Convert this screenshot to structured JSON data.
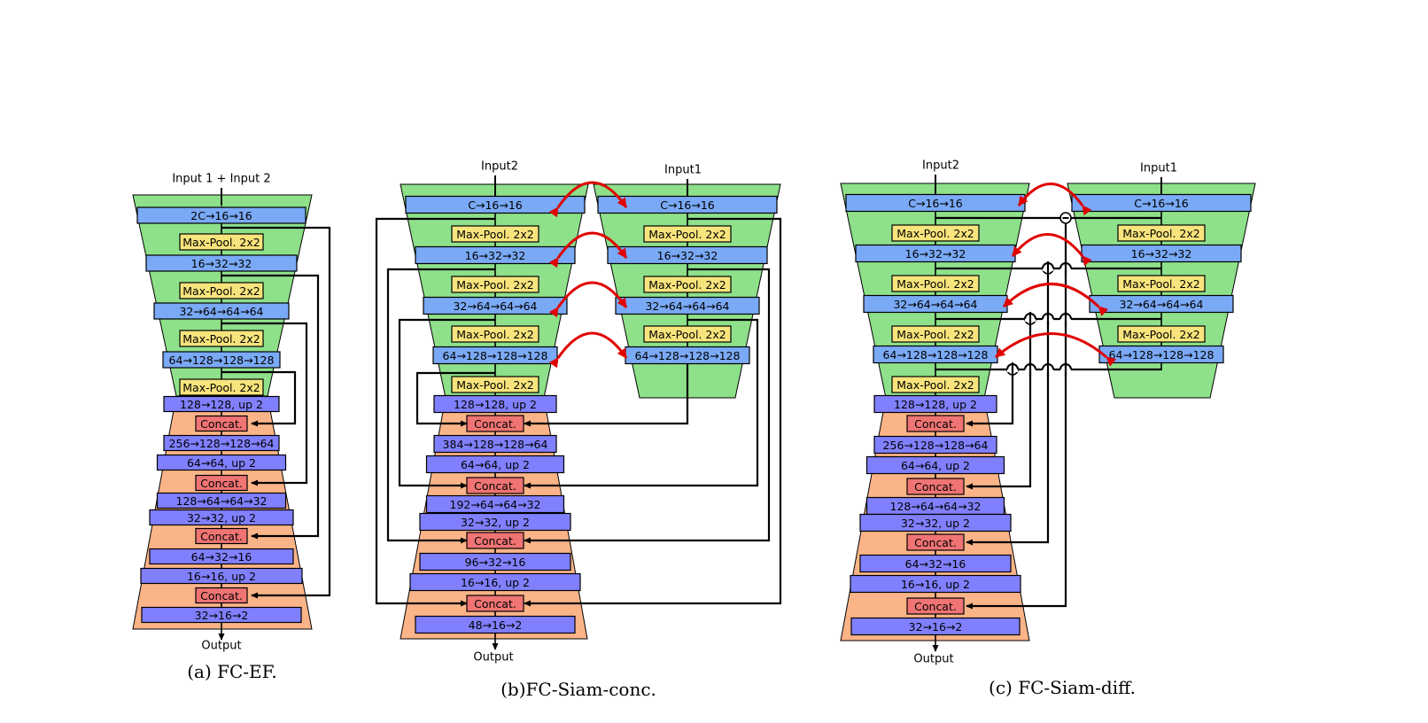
{
  "colors": {
    "encoder": "#8ee08a",
    "decoder": "#fbb488",
    "conv_enc": "#7aa9f5",
    "conv_dec": "#8080ff",
    "pool": "#f8e47c",
    "concat": "#f07474",
    "skip_arrow": "#e00000"
  },
  "panels": {
    "a": {
      "caption": "(a) FC-EF.",
      "input": "Input 1 + Input 2",
      "output": "Output",
      "enc": [
        "2C→16→16",
        "16→32→32",
        "32→64→64→64",
        "64→128→128→128"
      ],
      "pool": "Max-Pool. 2x2",
      "dec": [
        "128→128, up 2",
        "256→128→128→64",
        "64→64, up 2",
        "128→64→64→32",
        "32→32, up 2",
        "64→32→16",
        "16→16, up 2",
        "32→16→2"
      ],
      "concat": "Concat."
    },
    "b": {
      "caption": "(b)FC-Siam-conc.",
      "input_left": "Input2",
      "input_right": "Input1",
      "output": "Output",
      "enc": [
        "C→16→16",
        "16→32→32",
        "32→64→64→64",
        "64→128→128→128"
      ],
      "pool": "Max-Pool. 2x2",
      "dec": [
        "128→128, up 2",
        "384→128→128→64",
        "64→64, up 2",
        "192→64→64→32",
        "32→32, up 2",
        "96→32→16",
        "16→16, up 2",
        "48→16→2"
      ],
      "concat": "Concat."
    },
    "c": {
      "caption": "(c) FC-Siam-diff.",
      "input_left": "Input2",
      "input_right": "Input1",
      "output": "Output",
      "enc": [
        "C→16→16",
        "16→32→32",
        "32→64→64→64",
        "64→128→128→128"
      ],
      "pool": "Max-Pool. 2x2",
      "dec": [
        "128→128, up 2",
        "256→128→128→64",
        "64→64, up 2",
        "128→64→64→32",
        "32→32, up 2",
        "64→32→16",
        "16→16, up 2",
        "32→16→2"
      ],
      "concat": "Concat."
    }
  }
}
